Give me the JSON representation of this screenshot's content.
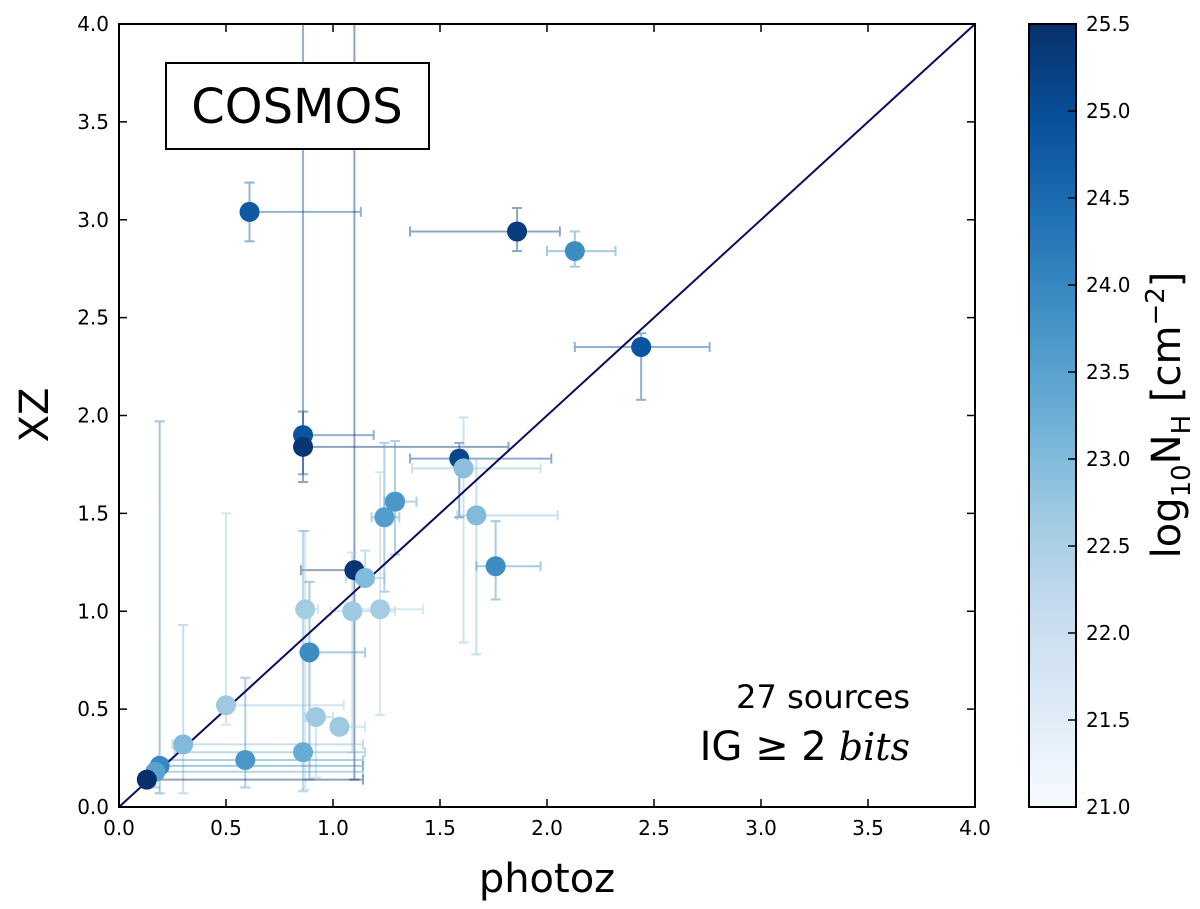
{
  "chart_data": {
    "type": "scatter",
    "title": "",
    "xlabel": "photoz",
    "ylabel": "XZ",
    "xlim": [
      0,
      4
    ],
    "ylim": [
      0,
      4
    ],
    "xticks": [
      "0.0",
      "0.5",
      "1.0",
      "1.5",
      "2.0",
      "2.5",
      "3.0",
      "3.5",
      "4.0"
    ],
    "yticks": [
      "0.0",
      "0.5",
      "1.0",
      "1.5",
      "2.0",
      "2.5",
      "3.0",
      "3.5",
      "4.0"
    ],
    "grid": false,
    "field_label": "COSMOS",
    "annotation": {
      "line1_text": "IG ≥ 2",
      "line1_unit": "bits",
      "line2": "27 sources"
    },
    "reference_line": "y = x",
    "colorbar": {
      "label_main": "log",
      "label_sub1": "10",
      "label_mid": "N",
      "label_sub2": "H",
      "label_unit": " [cm",
      "label_sup": "−2",
      "label_end": "]",
      "range": [
        21.0,
        25.5
      ],
      "ticks": [
        "21.0",
        "21.5",
        "22.0",
        "22.5",
        "23.0",
        "23.5",
        "24.0",
        "24.5",
        "25.0",
        "25.5"
      ]
    },
    "points": [
      {
        "x": 0.61,
        "y": 3.04,
        "nh": 24.8,
        "xerr": [
          0.0,
          0.52
        ],
        "yerr": [
          0.15,
          0.15
        ]
      },
      {
        "x": 1.86,
        "y": 2.94,
        "nh": 25.3,
        "xerr": [
          0.5,
          0.2
        ],
        "yerr": [
          0.1,
          0.12
        ]
      },
      {
        "x": 2.13,
        "y": 2.84,
        "nh": 23.9,
        "xerr": [
          0.13,
          0.19
        ],
        "yerr": [
          0.08,
          0.1
        ]
      },
      {
        "x": 2.44,
        "y": 2.35,
        "nh": 24.9,
        "xerr": [
          0.31,
          0.32
        ],
        "yerr": [
          0.27,
          0.07
        ]
      },
      {
        "x": 0.86,
        "y": 1.9,
        "nh": 24.9,
        "xerr": [
          0.0,
          0.33
        ],
        "yerr": [
          0.2,
          2.4
        ]
      },
      {
        "x": 0.86,
        "y": 1.84,
        "nh": 25.4,
        "xerr": [
          0.0,
          0.96
        ],
        "yerr": [
          0.18,
          0.18
        ]
      },
      {
        "x": 1.59,
        "y": 1.78,
        "nh": 25.1,
        "xerr": [
          0.23,
          0.43
        ],
        "yerr": [
          0.3,
          0.08
        ]
      },
      {
        "x": 1.61,
        "y": 1.73,
        "nh": 22.9,
        "xerr": [
          0.24,
          0.36
        ],
        "yerr": [
          0.89,
          0.26
        ]
      },
      {
        "x": 1.29,
        "y": 1.56,
        "nh": 23.7,
        "xerr": [
          0.05,
          0.1
        ],
        "yerr": [
          0.27,
          0.31
        ]
      },
      {
        "x": 1.24,
        "y": 1.48,
        "nh": 23.6,
        "xerr": [
          0.06,
          0.07
        ],
        "yerr": [
          0.38,
          0.38
        ]
      },
      {
        "x": 1.67,
        "y": 1.49,
        "nh": 23.0,
        "xerr": [
          0.09,
          0.38
        ],
        "yerr": [
          0.71,
          0.29
        ]
      },
      {
        "x": 1.76,
        "y": 1.23,
        "nh": 23.9,
        "xerr": [
          0.09,
          0.21
        ],
        "yerr": [
          0.17,
          0.23
        ]
      },
      {
        "x": 1.1,
        "y": 1.21,
        "nh": 25.4,
        "xerr": [
          0.25,
          0.0
        ],
        "yerr": [
          1.07,
          2.8
        ]
      },
      {
        "x": 1.15,
        "y": 1.17,
        "nh": 23.0,
        "xerr": [
          0.09,
          0.09
        ],
        "yerr": [
          0.0,
          0.14
        ]
      },
      {
        "x": 0.87,
        "y": 1.01,
        "nh": 22.6,
        "xerr": [
          0.0,
          0.06
        ],
        "yerr": [
          0.92,
          0.4
        ]
      },
      {
        "x": 1.09,
        "y": 1.0,
        "nh": 22.7,
        "xerr": [
          0.1,
          0.2
        ],
        "yerr": [
          0.72,
          0.3
        ]
      },
      {
        "x": 1.22,
        "y": 1.01,
        "nh": 22.6,
        "xerr": [
          0.1,
          0.2
        ],
        "yerr": [
          0.54,
          0.7
        ]
      },
      {
        "x": 0.89,
        "y": 0.79,
        "nh": 23.9,
        "xerr": [
          0.03,
          0.26
        ],
        "yerr": [
          0.65,
          0.36
        ]
      },
      {
        "x": 0.5,
        "y": 0.52,
        "nh": 22.7,
        "xerr": [
          0.0,
          0.55
        ],
        "yerr": [
          0.1,
          0.98
        ]
      },
      {
        "x": 0.92,
        "y": 0.46,
        "nh": 22.7,
        "xerr": [
          0.05,
          0.08
        ],
        "yerr": [
          0.31,
          0.0
        ]
      },
      {
        "x": 1.03,
        "y": 0.41,
        "nh": 22.7,
        "xerr": [
          0.0,
          0.12
        ],
        "yerr": [
          0.0,
          0.0
        ]
      },
      {
        "x": 0.3,
        "y": 0.32,
        "nh": 23.0,
        "xerr": [
          0.05,
          0.84
        ],
        "yerr": [
          0.25,
          0.61
        ]
      },
      {
        "x": 0.59,
        "y": 0.24,
        "nh": 23.7,
        "xerr": [
          0.41,
          0.55
        ],
        "yerr": [
          0.14,
          0.42
        ]
      },
      {
        "x": 0.86,
        "y": 0.28,
        "nh": 23.3,
        "xerr": [
          0.6,
          0.29
        ],
        "yerr": [
          0.2,
          1.13
        ]
      },
      {
        "x": 0.19,
        "y": 0.21,
        "nh": 24.0,
        "xerr": [
          0.0,
          0.95
        ],
        "yerr": [
          0.14,
          1.76
        ]
      },
      {
        "x": 0.17,
        "y": 0.18,
        "nh": 23.5,
        "xerr": [
          0.0,
          0.97
        ],
        "yerr": [
          0.08,
          0.0
        ]
      },
      {
        "x": 0.13,
        "y": 0.14,
        "nh": 25.5,
        "xerr": [
          0.0,
          1.01
        ],
        "yerr": [
          0.0,
          0.0
        ]
      }
    ]
  }
}
